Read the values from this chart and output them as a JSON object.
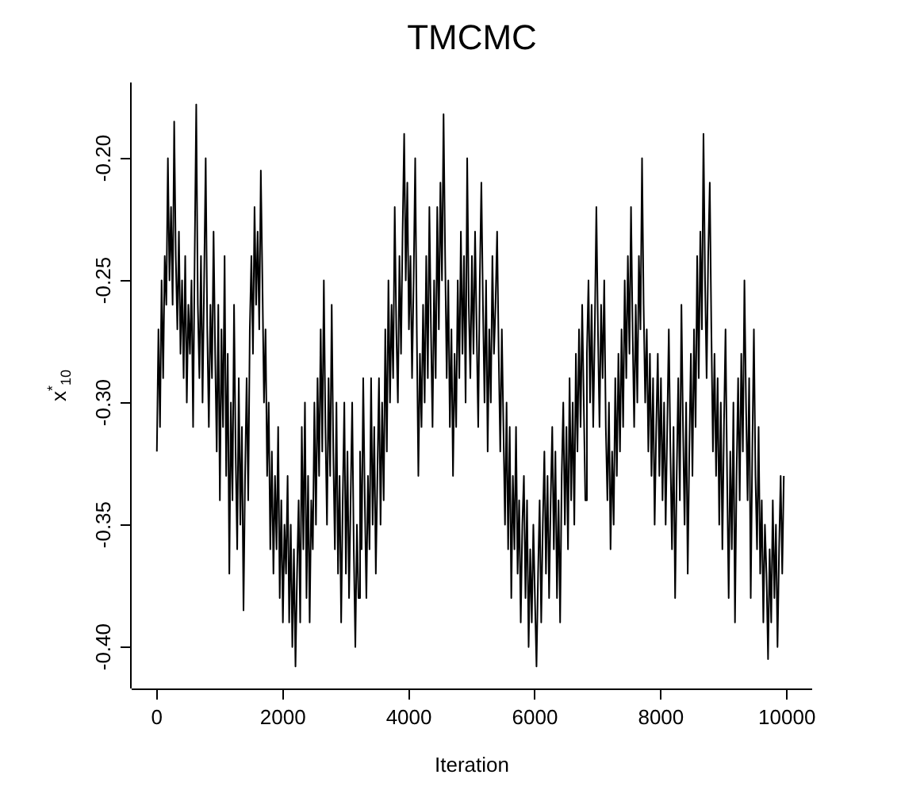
{
  "chart_data": {
    "type": "line",
    "title": "TMCMC",
    "xlabel": "Iteration",
    "ylabel": "x$^{*}$$_{10}$",
    "xlim": [
      -400,
      10400
    ],
    "ylim": [
      -0.417,
      -0.169
    ],
    "xticks": [
      0,
      2000,
      4000,
      6000,
      8000,
      10000
    ],
    "yticks": [
      {
        "value": -0.4,
        "label": "-0.40"
      },
      {
        "value": -0.35,
        "label": "-0.35"
      },
      {
        "value": -0.3,
        "label": "-0.30"
      },
      {
        "value": -0.25,
        "label": "-0.25"
      },
      {
        "value": -0.2,
        "label": "-0.20"
      }
    ],
    "x": [
      0,
      25,
      50,
      75,
      100,
      125,
      150,
      175,
      200,
      225,
      250,
      275,
      300,
      325,
      350,
      375,
      400,
      425,
      450,
      475,
      500,
      525,
      550,
      575,
      600,
      625,
      650,
      675,
      700,
      725,
      750,
      775,
      800,
      825,
      850,
      875,
      900,
      925,
      950,
      975,
      1000,
      1025,
      1050,
      1075,
      1100,
      1125,
      1150,
      1175,
      1200,
      1225,
      1250,
      1275,
      1300,
      1325,
      1350,
      1375,
      1400,
      1425,
      1450,
      1475,
      1500,
      1525,
      1550,
      1575,
      1600,
      1625,
      1650,
      1675,
      1700,
      1725,
      1750,
      1775,
      1800,
      1825,
      1850,
      1875,
      1900,
      1925,
      1950,
      1975,
      2000,
      2025,
      2050,
      2075,
      2100,
      2125,
      2150,
      2175,
      2200,
      2225,
      2250,
      2275,
      2300,
      2325,
      2350,
      2375,
      2400,
      2425,
      2450,
      2475,
      2500,
      2525,
      2550,
      2575,
      2600,
      2625,
      2650,
      2675,
      2700,
      2725,
      2750,
      2775,
      2800,
      2825,
      2850,
      2875,
      2900,
      2925,
      2950,
      2975,
      3000,
      3025,
      3050,
      3075,
      3100,
      3125,
      3150,
      3175,
      3200,
      3225,
      3250,
      3275,
      3300,
      3325,
      3350,
      3375,
      3400,
      3425,
      3450,
      3475,
      3500,
      3525,
      3550,
      3575,
      3600,
      3625,
      3650,
      3675,
      3700,
      3725,
      3750,
      3775,
      3800,
      3825,
      3850,
      3875,
      3900,
      3925,
      3950,
      3975,
      4000,
      4025,
      4050,
      4075,
      4100,
      4125,
      4150,
      4175,
      4200,
      4225,
      4250,
      4275,
      4300,
      4325,
      4350,
      4375,
      4400,
      4425,
      4450,
      4475,
      4500,
      4525,
      4550,
      4575,
      4600,
      4625,
      4650,
      4675,
      4700,
      4725,
      4750,
      4775,
      4800,
      4825,
      4850,
      4875,
      4900,
      4925,
      4950,
      4975,
      5000,
      5025,
      5050,
      5075,
      5100,
      5125,
      5150,
      5175,
      5200,
      5225,
      5250,
      5275,
      5300,
      5325,
      5350,
      5375,
      5400,
      5425,
      5450,
      5475,
      5500,
      5525,
      5550,
      5575,
      5600,
      5625,
      5650,
      5675,
      5700,
      5725,
      5750,
      5775,
      5800,
      5825,
      5850,
      5875,
      5900,
      5925,
      5950,
      5975,
      6000,
      6025,
      6050,
      6075,
      6100,
      6125,
      6150,
      6175,
      6200,
      6225,
      6250,
      6275,
      6300,
      6325,
      6350,
      6375,
      6400,
      6425,
      6450,
      6475,
      6500,
      6525,
      6550,
      6575,
      6600,
      6625,
      6650,
      6675,
      6700,
      6725,
      6750,
      6775,
      6800,
      6825,
      6850,
      6875,
      6900,
      6925,
      6950,
      6975,
      7000,
      7025,
      7050,
      7075,
      7100,
      7125,
      7150,
      7175,
      7200,
      7225,
      7250,
      7275,
      7300,
      7325,
      7350,
      7375,
      7400,
      7425,
      7450,
      7475,
      7500,
      7525,
      7550,
      7575,
      7600,
      7625,
      7650,
      7675,
      7700,
      7725,
      7750,
      7775,
      7800,
      7825,
      7850,
      7875,
      7900,
      7925,
      7950,
      7975,
      8000,
      8025,
      8050,
      8075,
      8100,
      8125,
      8150,
      8175,
      8200,
      8225,
      8250,
      8275,
      8300,
      8325,
      8350,
      8375,
      8400,
      8425,
      8450,
      8475,
      8500,
      8525,
      8550,
      8575,
      8600,
      8625,
      8650,
      8675,
      8700,
      8725,
      8750,
      8775,
      8800,
      8825,
      8850,
      8875,
      8900,
      8925,
      8950,
      8975,
      9000,
      9025,
      9050,
      9075,
      9100,
      9125,
      9150,
      9175,
      9200,
      9225,
      9250,
      9275,
      9300,
      9325,
      9350,
      9375,
      9400,
      9425,
      9450,
      9475,
      9500,
      9525,
      9550,
      9575,
      9600,
      9625,
      9650,
      9675,
      9700,
      9725,
      9750,
      9775,
      9800,
      9825,
      9850,
      9875,
      9900,
      9925,
      9950
    ],
    "series": [
      {
        "color": "#000000",
        "values": [
          -0.32,
          -0.27,
          -0.31,
          -0.25,
          -0.29,
          -0.24,
          -0.26,
          -0.2,
          -0.25,
          -0.22,
          -0.26,
          -0.185,
          -0.24,
          -0.27,
          -0.23,
          -0.28,
          -0.25,
          -0.29,
          -0.24,
          -0.3,
          -0.26,
          -0.28,
          -0.25,
          -0.31,
          -0.24,
          -0.178,
          -0.26,
          -0.29,
          -0.24,
          -0.3,
          -0.25,
          -0.2,
          -0.27,
          -0.31,
          -0.26,
          -0.29,
          -0.23,
          -0.28,
          -0.32,
          -0.26,
          -0.34,
          -0.27,
          -0.31,
          -0.24,
          -0.33,
          -0.28,
          -0.37,
          -0.3,
          -0.34,
          -0.26,
          -0.32,
          -0.36,
          -0.29,
          -0.35,
          -0.31,
          -0.385,
          -0.33,
          -0.29,
          -0.34,
          -0.27,
          -0.24,
          -0.28,
          -0.22,
          -0.26,
          -0.23,
          -0.27,
          -0.205,
          -0.25,
          -0.3,
          -0.27,
          -0.33,
          -0.3,
          -0.36,
          -0.32,
          -0.37,
          -0.33,
          -0.36,
          -0.31,
          -0.38,
          -0.34,
          -0.39,
          -0.35,
          -0.37,
          -0.33,
          -0.39,
          -0.35,
          -0.4,
          -0.36,
          -0.408,
          -0.37,
          -0.34,
          -0.39,
          -0.31,
          -0.36,
          -0.3,
          -0.38,
          -0.33,
          -0.39,
          -0.34,
          -0.36,
          -0.3,
          -0.35,
          -0.29,
          -0.33,
          -0.27,
          -0.32,
          -0.25,
          -0.31,
          -0.35,
          -0.29,
          -0.33,
          -0.26,
          -0.32,
          -0.36,
          -0.3,
          -0.37,
          -0.33,
          -0.39,
          -0.34,
          -0.3,
          -0.37,
          -0.32,
          -0.38,
          -0.34,
          -0.3,
          -0.36,
          -0.4,
          -0.35,
          -0.38,
          -0.32,
          -0.36,
          -0.29,
          -0.34,
          -0.38,
          -0.33,
          -0.36,
          -0.29,
          -0.35,
          -0.31,
          -0.37,
          -0.33,
          -0.29,
          -0.35,
          -0.3,
          -0.34,
          -0.27,
          -0.32,
          -0.25,
          -0.3,
          -0.26,
          -0.29,
          -0.22,
          -0.27,
          -0.3,
          -0.24,
          -0.28,
          -0.23,
          -0.19,
          -0.25,
          -0.21,
          -0.27,
          -0.24,
          -0.29,
          -0.25,
          -0.2,
          -0.27,
          -0.33,
          -0.28,
          -0.31,
          -0.26,
          -0.3,
          -0.24,
          -0.29,
          -0.22,
          -0.27,
          -0.31,
          -0.25,
          -0.29,
          -0.22,
          -0.27,
          -0.21,
          -0.25,
          -0.182,
          -0.24,
          -0.29,
          -0.25,
          -0.31,
          -0.27,
          -0.33,
          -0.28,
          -0.31,
          -0.25,
          -0.29,
          -0.23,
          -0.28,
          -0.24,
          -0.3,
          -0.2,
          -0.26,
          -0.29,
          -0.24,
          -0.28,
          -0.23,
          -0.27,
          -0.31,
          -0.25,
          -0.21,
          -0.26,
          -0.3,
          -0.25,
          -0.32,
          -0.27,
          -0.3,
          -0.24,
          -0.28,
          -0.26,
          -0.23,
          -0.28,
          -0.32,
          -0.27,
          -0.31,
          -0.35,
          -0.3,
          -0.36,
          -0.31,
          -0.38,
          -0.33,
          -0.36,
          -0.31,
          -0.37,
          -0.34,
          -0.39,
          -0.35,
          -0.33,
          -0.38,
          -0.34,
          -0.4,
          -0.36,
          -0.39,
          -0.35,
          -0.38,
          -0.408,
          -0.37,
          -0.34,
          -0.39,
          -0.35,
          -0.32,
          -0.37,
          -0.33,
          -0.38,
          -0.34,
          -0.31,
          -0.36,
          -0.32,
          -0.38,
          -0.34,
          -0.39,
          -0.33,
          -0.3,
          -0.35,
          -0.31,
          -0.36,
          -0.29,
          -0.34,
          -0.3,
          -0.35,
          -0.28,
          -0.32,
          -0.27,
          -0.31,
          -0.26,
          -0.3,
          -0.34,
          -0.28,
          -0.25,
          -0.3,
          -0.26,
          -0.31,
          -0.27,
          -0.22,
          -0.27,
          -0.31,
          -0.26,
          -0.29,
          -0.25,
          -0.31,
          -0.34,
          -0.3,
          -0.36,
          -0.32,
          -0.35,
          -0.29,
          -0.33,
          -0.28,
          -0.32,
          -0.27,
          -0.31,
          -0.25,
          -0.29,
          -0.24,
          -0.28,
          -0.22,
          -0.27,
          -0.31,
          -0.26,
          -0.3,
          -0.24,
          -0.27,
          -0.2,
          -0.26,
          -0.3,
          -0.27,
          -0.32,
          -0.28,
          -0.33,
          -0.29,
          -0.35,
          -0.31,
          -0.28,
          -0.33,
          -0.29,
          -0.34,
          -0.3,
          -0.35,
          -0.31,
          -0.27,
          -0.32,
          -0.36,
          -0.31,
          -0.38,
          -0.33,
          -0.29,
          -0.34,
          -0.26,
          -0.31,
          -0.35,
          -0.3,
          -0.37,
          -0.32,
          -0.28,
          -0.33,
          -0.27,
          -0.31,
          -0.24,
          -0.29,
          -0.23,
          -0.27,
          -0.19,
          -0.25,
          -0.29,
          -0.24,
          -0.21,
          -0.27,
          -0.32,
          -0.28,
          -0.33,
          -0.29,
          -0.35,
          -0.3,
          -0.36,
          -0.31,
          -0.27,
          -0.33,
          -0.38,
          -0.32,
          -0.36,
          -0.3,
          -0.39,
          -0.33,
          -0.29,
          -0.34,
          -0.28,
          -0.32,
          -0.25,
          -0.3,
          -0.34,
          -0.29,
          -0.38,
          -0.32,
          -0.27,
          -0.33,
          -0.36,
          -0.31,
          -0.37,
          -0.34,
          -0.39,
          -0.35,
          -0.37,
          -0.405,
          -0.36,
          -0.39,
          -0.34,
          -0.38,
          -0.35,
          -0.4,
          -0.36,
          -0.33,
          -0.37,
          -0.33
        ]
      }
    ]
  }
}
